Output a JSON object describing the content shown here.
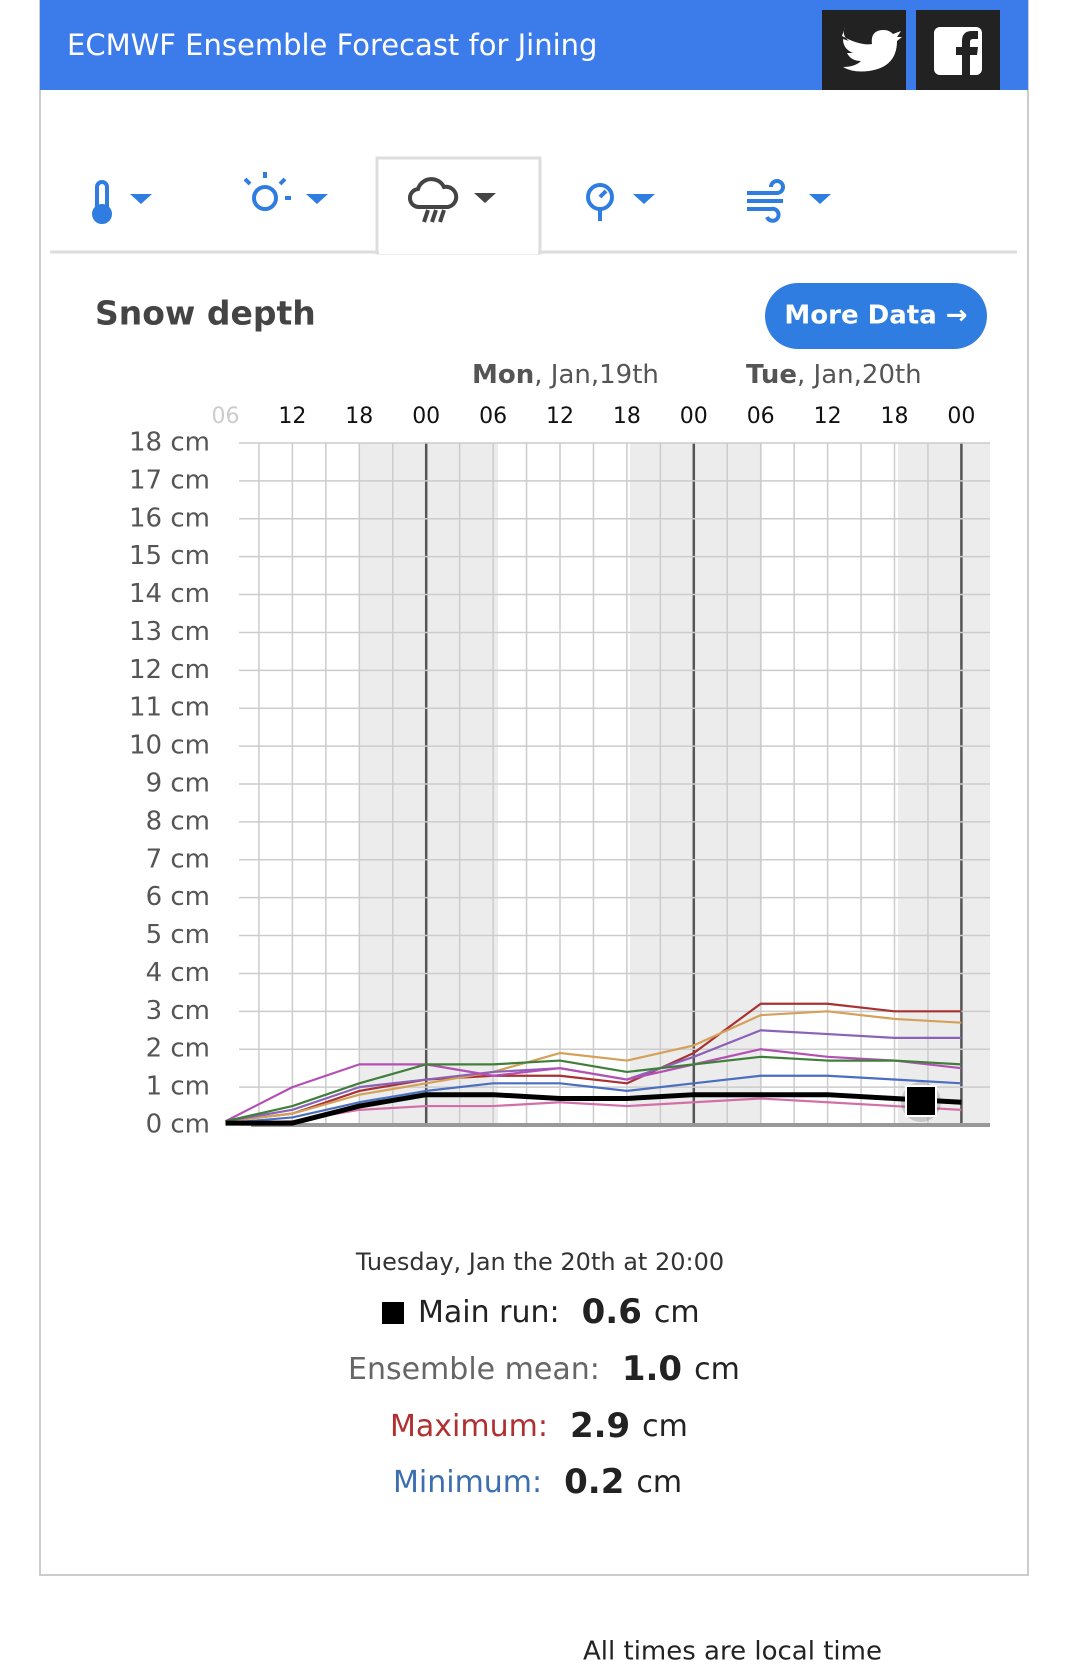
{
  "header": {
    "title": "ECMWF Ensemble Forecast for Jining"
  },
  "chart_data": {
    "type": "line",
    "title": "Snow depth",
    "button": "More Data →",
    "days": [
      {
        "day": "Mon",
        "date": ", Jan,19th"
      },
      {
        "day": "Tue",
        "date": ", Jan,20th"
      }
    ],
    "categories": [
      "06",
      "12",
      "18",
      "00",
      "06",
      "12",
      "18",
      "00",
      "06",
      "12",
      "18",
      "00"
    ],
    "ylim": [
      0,
      18
    ],
    "yticks": [
      {
        "value": 0,
        "label": "0 cm"
      },
      {
        "value": 1,
        "label": "1 cm"
      },
      {
        "value": 2,
        "label": "2 cm"
      },
      {
        "value": 3,
        "label": "3 cm"
      },
      {
        "value": 4,
        "label": "4 cm"
      },
      {
        "value": 5,
        "label": "5 cm"
      },
      {
        "value": 6,
        "label": "6 cm"
      },
      {
        "value": 7,
        "label": "7 cm"
      },
      {
        "value": 8,
        "label": "8 cm"
      },
      {
        "value": 9,
        "label": "9 cm"
      },
      {
        "value": 10,
        "label": "10 cm"
      },
      {
        "value": 11,
        "label": "11 cm"
      },
      {
        "value": 12,
        "label": "12 cm"
      },
      {
        "value": 13,
        "label": "13 cm"
      },
      {
        "value": 14,
        "label": "14 cm"
      },
      {
        "value": 15,
        "label": "15 cm"
      },
      {
        "value": 16,
        "label": "16 cm"
      },
      {
        "value": 17,
        "label": "17 cm"
      },
      {
        "value": 18,
        "label": "18 cm"
      }
    ],
    "grid": true,
    "series": [
      {
        "color": "#a83232",
        "values": [
          0.1,
          0.3,
          0.9,
          1.2,
          1.3,
          1.3,
          1.1,
          1.9,
          3.2,
          3.2,
          3.0,
          3.0
        ]
      },
      {
        "color": "#d4a05a",
        "values": [
          0.1,
          0.3,
          0.8,
          1.1,
          1.4,
          1.9,
          1.7,
          2.1,
          2.9,
          3.0,
          2.8,
          2.7
        ]
      },
      {
        "color": "#8a62b8",
        "values": [
          0.1,
          0.4,
          1.0,
          1.2,
          1.4,
          1.5,
          1.2,
          1.8,
          2.5,
          2.4,
          2.3,
          2.3
        ]
      },
      {
        "color": "#b450b4",
        "values": [
          0.1,
          1.0,
          1.6,
          1.6,
          1.3,
          1.5,
          1.2,
          1.6,
          2.0,
          1.8,
          1.7,
          1.5
        ]
      },
      {
        "color": "#3f7f3a",
        "values": [
          0.1,
          0.5,
          1.1,
          1.6,
          1.6,
          1.7,
          1.4,
          1.6,
          1.8,
          1.7,
          1.7,
          1.6
        ]
      },
      {
        "color": "#4a6fc0",
        "values": [
          0.05,
          0.2,
          0.6,
          0.9,
          1.1,
          1.1,
          0.9,
          1.1,
          1.3,
          1.3,
          1.2,
          1.1
        ]
      },
      {
        "color": "#d36fa8",
        "values": [
          0.05,
          0.1,
          0.4,
          0.5,
          0.5,
          0.6,
          0.5,
          0.6,
          0.7,
          0.6,
          0.5,
          0.4
        ]
      },
      {
        "name": "Main run",
        "color": "#000000",
        "values": [
          0.05,
          0.05,
          0.5,
          0.8,
          0.8,
          0.7,
          0.7,
          0.8,
          0.8,
          0.8,
          0.7,
          0.6
        ]
      }
    ]
  },
  "tooltip": {
    "time": "Tuesday, Jan the 20th at 20:00",
    "stats": [
      {
        "label": "Main run:",
        "value": "0.6",
        "unit": "cm"
      },
      {
        "label": "Ensemble mean:",
        "value": "1.0",
        "unit": "cm"
      },
      {
        "label": "Maximum:",
        "value": "2.9",
        "unit": "cm"
      },
      {
        "label": "Minimum:",
        "value": "0.2",
        "unit": "cm"
      }
    ]
  },
  "footer": {
    "note": "All times are local time"
  }
}
